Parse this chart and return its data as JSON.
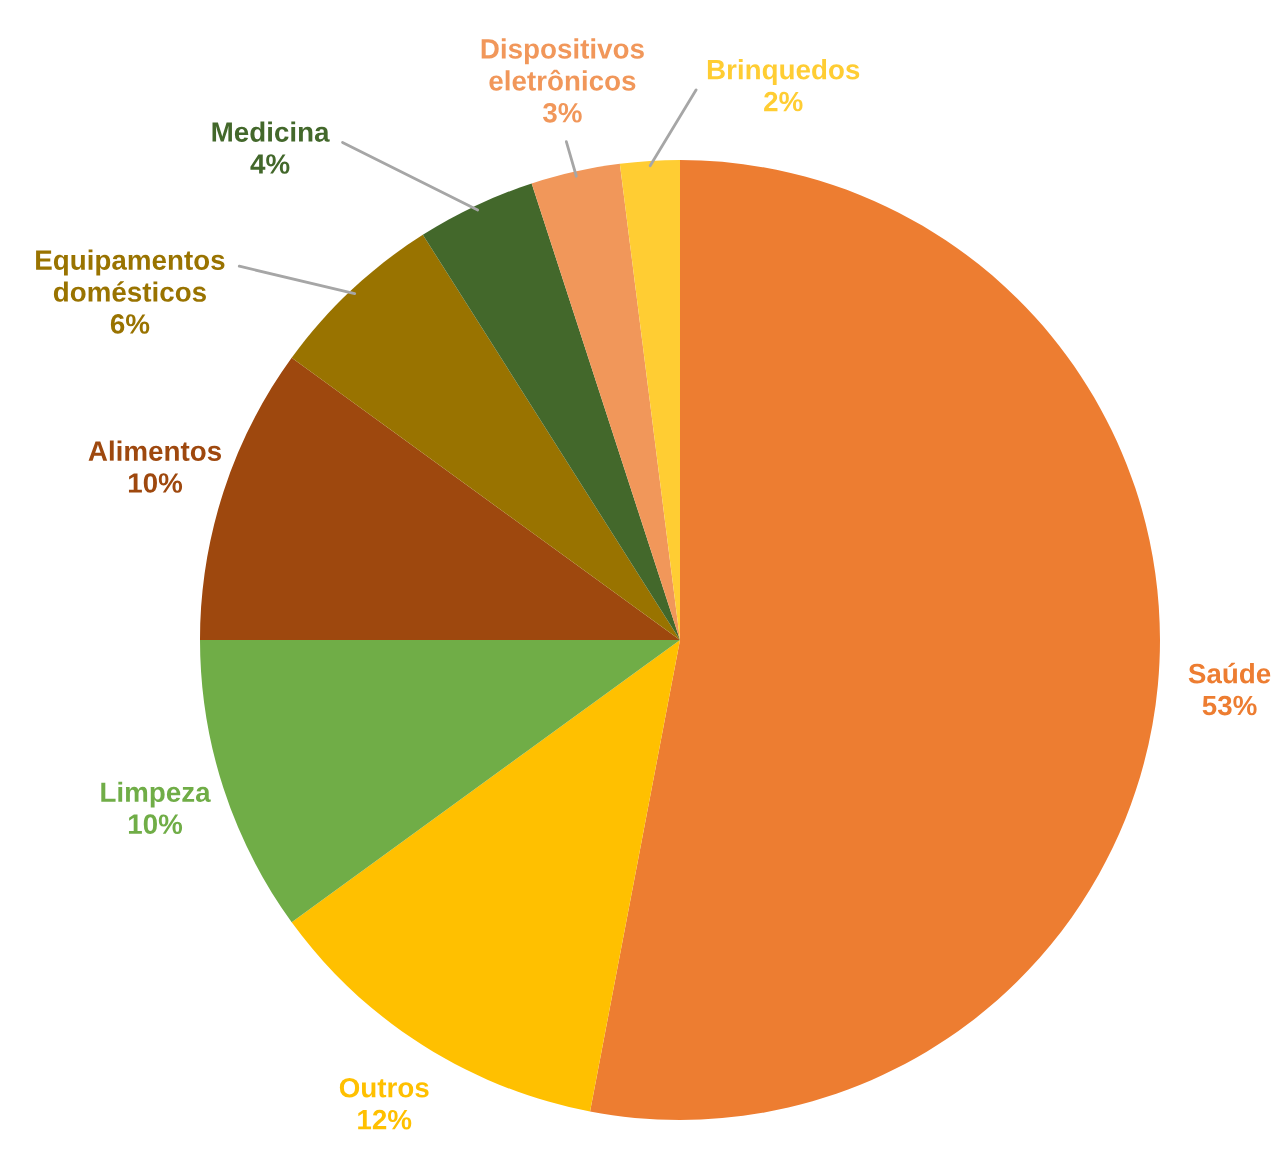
{
  "chart_data": {
    "type": "pie",
    "categories": [
      "Saúde",
      "Outros",
      "Limpeza",
      "Alimentos",
      "Equipamentos domésticos",
      "Medicina",
      "Dispositivos eletrônicos",
      "Brinquedos"
    ],
    "values": [
      53,
      12,
      10,
      10,
      6,
      4,
      3,
      2
    ],
    "value_labels": [
      "53%",
      "12%",
      "10%",
      "10%",
      "6%",
      "4%",
      "3%",
      "2%"
    ],
    "colors": [
      "#ed7d31",
      "#ffc000",
      "#70ad47",
      "#9e480e",
      "#997300",
      "#43682b",
      "#f1975a",
      "#ffcd33"
    ],
    "legend": false
  }
}
